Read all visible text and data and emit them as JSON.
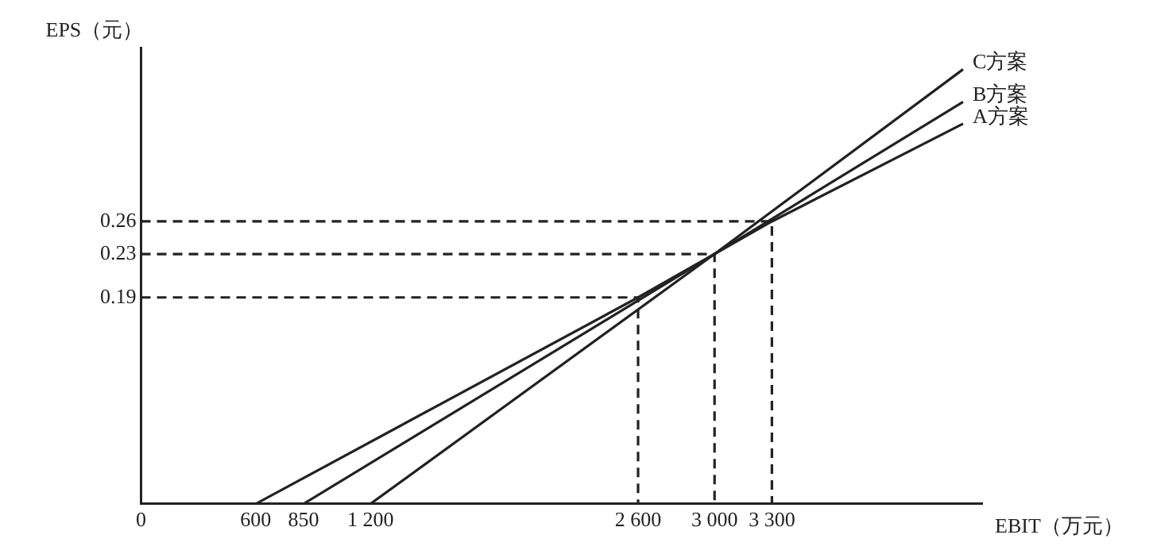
{
  "chart_data": {
    "type": "line",
    "xlabel": "EBIT（万元）",
    "ylabel": "EPS（元）",
    "xlim": [
      0,
      4400
    ],
    "ylim": [
      0,
      0.42
    ],
    "xticks": [
      0,
      600,
      850,
      {
        "value": 1200,
        "label": "1 200"
      },
      {
        "value": 2600,
        "label": "2 600"
      },
      {
        "value": 3000,
        "label": "3 000"
      },
      {
        "value": 3300,
        "label": "3 300"
      }
    ],
    "yticks": [
      0.19,
      0.23,
      0.26
    ],
    "grid": false,
    "marker": "none",
    "series": [
      {
        "name": "A方案",
        "color": "#222222",
        "x": [
          600,
          2600,
          3300,
          4300
        ],
        "values": [
          0,
          0.19,
          0.26,
          0.35
        ]
      },
      {
        "name": "B方案",
        "color": "#222222",
        "x": [
          850,
          3000,
          4300
        ],
        "values": [
          0,
          0.23,
          0.37
        ]
      },
      {
        "name": "C方案",
        "color": "#222222",
        "x": [
          1200,
          3000,
          4300
        ],
        "values": [
          0,
          0.23,
          0.4
        ]
      },
      {
        "color": "#222222",
        "line_style": "dashed",
        "x": [
          0,
          2600,
          2600
        ],
        "values": [
          0.19,
          0.19,
          0
        ]
      },
      {
        "color": "#222222",
        "line_style": "dashed",
        "x": [
          0,
          3000,
          3000
        ],
        "values": [
          0.23,
          0.23,
          0
        ]
      },
      {
        "color": "#222222",
        "line_style": "dashed",
        "x": [
          0,
          3300,
          3300
        ],
        "values": [
          0.26,
          0.26,
          0
        ]
      }
    ]
  }
}
